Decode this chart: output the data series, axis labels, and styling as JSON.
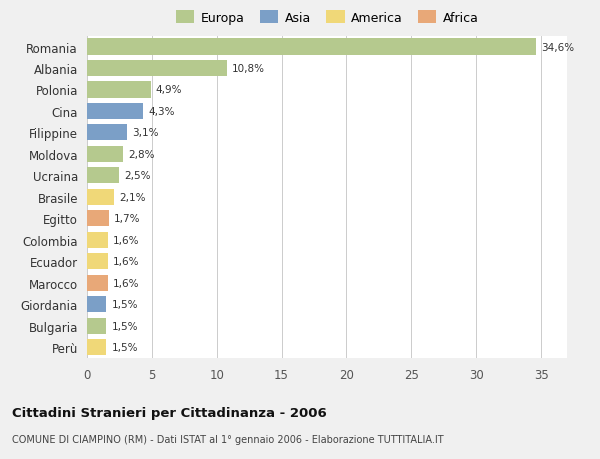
{
  "countries": [
    "Romania",
    "Albania",
    "Polonia",
    "Cina",
    "Filippine",
    "Moldova",
    "Ucraina",
    "Brasile",
    "Egitto",
    "Colombia",
    "Ecuador",
    "Marocco",
    "Giordania",
    "Bulgaria",
    "Perù"
  ],
  "values": [
    34.6,
    10.8,
    4.9,
    4.3,
    3.1,
    2.8,
    2.5,
    2.1,
    1.7,
    1.6,
    1.6,
    1.6,
    1.5,
    1.5,
    1.5
  ],
  "labels": [
    "34,6%",
    "10,8%",
    "4,9%",
    "4,3%",
    "3,1%",
    "2,8%",
    "2,5%",
    "2,1%",
    "1,7%",
    "1,6%",
    "1,6%",
    "1,6%",
    "1,5%",
    "1,5%",
    "1,5%"
  ],
  "colors": [
    "#b5c98e",
    "#b5c98e",
    "#b5c98e",
    "#7b9fc7",
    "#7b9fc7",
    "#b5c98e",
    "#b5c98e",
    "#f0d878",
    "#e8a878",
    "#f0d878",
    "#f0d878",
    "#e8a878",
    "#7b9fc7",
    "#b5c98e",
    "#f0d878"
  ],
  "legend_labels": [
    "Europa",
    "Asia",
    "America",
    "Africa"
  ],
  "legend_colors": [
    "#b5c98e",
    "#7b9fc7",
    "#f0d878",
    "#e8a878"
  ],
  "title": "Cittadini Stranieri per Cittadinanza - 2006",
  "subtitle": "COMUNE DI CIAMPINO (RM) - Dati ISTAT al 1° gennaio 2006 - Elaborazione TUTTITALIA.IT",
  "xlim": [
    0,
    37
  ],
  "xticks": [
    0,
    5,
    10,
    15,
    20,
    25,
    30,
    35
  ],
  "background_color": "#f0f0f0",
  "plot_bg_color": "#ffffff",
  "bar_height": 0.75
}
